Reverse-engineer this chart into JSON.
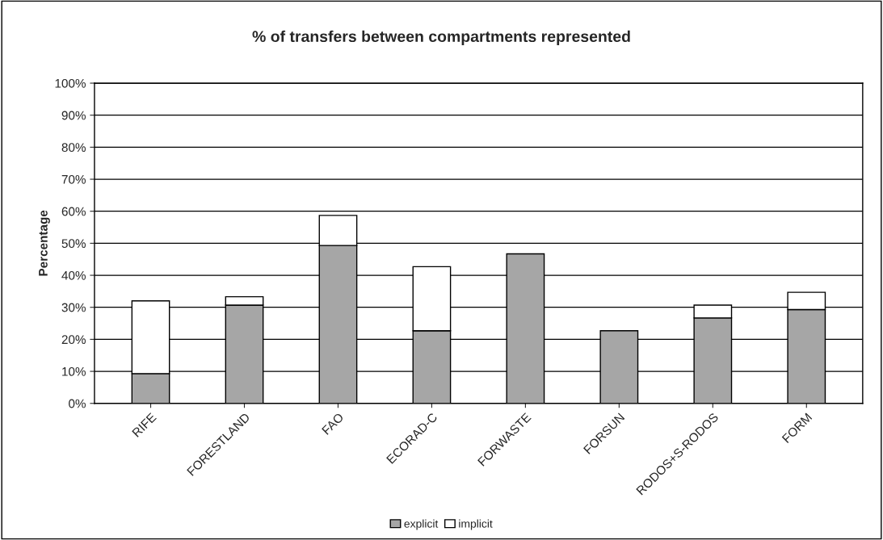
{
  "chart_data": {
    "type": "bar",
    "title": "% of transfers between compartments represented",
    "ylabel": "Percentage",
    "categories": [
      "RIFE",
      "FORESTLAND",
      "FAO",
      "ECORAD-C",
      "FORWASTE",
      "FORSUN",
      "RODOS+S-RODOS",
      "FORM"
    ],
    "stacked": true,
    "series": [
      {
        "name": "explicit",
        "color": "#a6a6a6",
        "values": [
          9.3,
          30.7,
          49.3,
          22.7,
          46.7,
          22.7,
          26.7,
          29.3
        ]
      },
      {
        "name": "implicit",
        "color": "#ffffff",
        "values": [
          22.7,
          2.6,
          9.4,
          20.0,
          null,
          null,
          4.0,
          5.4
        ]
      }
    ],
    "ylim": [
      0,
      100
    ],
    "yticks": [
      {
        "value": 0,
        "label": "0%"
      },
      {
        "value": 10,
        "label": "10%"
      },
      {
        "value": 20,
        "label": "20%"
      },
      {
        "value": 30,
        "label": "30%"
      },
      {
        "value": 40,
        "label": "40%"
      },
      {
        "value": 50,
        "label": "50%"
      },
      {
        "value": 60,
        "label": "60%"
      },
      {
        "value": 70,
        "label": "70%"
      },
      {
        "value": 80,
        "label": "80%"
      },
      {
        "value": 90,
        "label": "90%"
      },
      {
        "value": 100,
        "label": "100%"
      }
    ],
    "grid": "y",
    "legend": "bottom"
  }
}
